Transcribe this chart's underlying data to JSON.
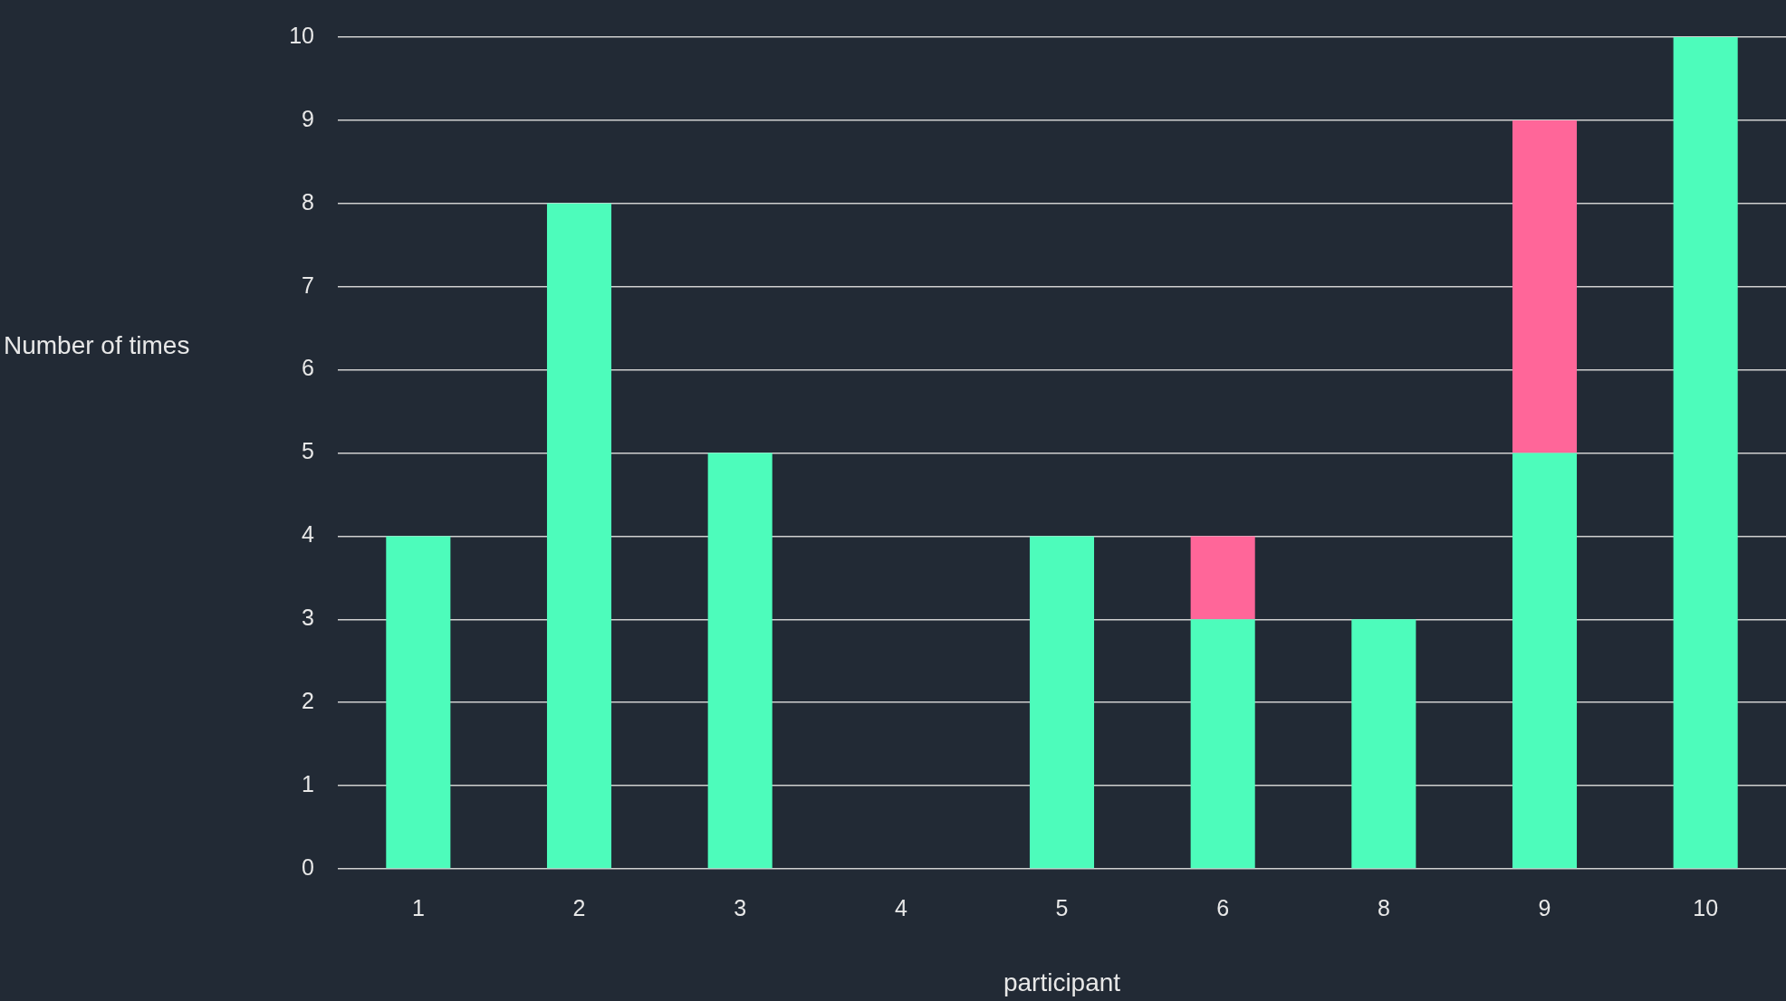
{
  "chart_data": {
    "type": "bar",
    "xlabel": "participant",
    "ylabel": "Number of times",
    "categories": [
      "1",
      "2",
      "3",
      "4",
      "5",
      "6",
      "8",
      "9",
      "10"
    ],
    "series": [
      {
        "color": "#4dfcbb",
        "values": [
          4,
          8,
          5,
          0,
          4,
          3,
          3,
          5,
          10
        ]
      },
      {
        "color": "#ff6699",
        "values": [
          null,
          null,
          null,
          null,
          null,
          1,
          null,
          4,
          null
        ]
      }
    ],
    "stacked": true,
    "ylim": [
      0,
      10
    ],
    "yticks": [
      0,
      1,
      2,
      3,
      4,
      5,
      6,
      7,
      8,
      9,
      10
    ],
    "grid": "y",
    "legend": false
  }
}
